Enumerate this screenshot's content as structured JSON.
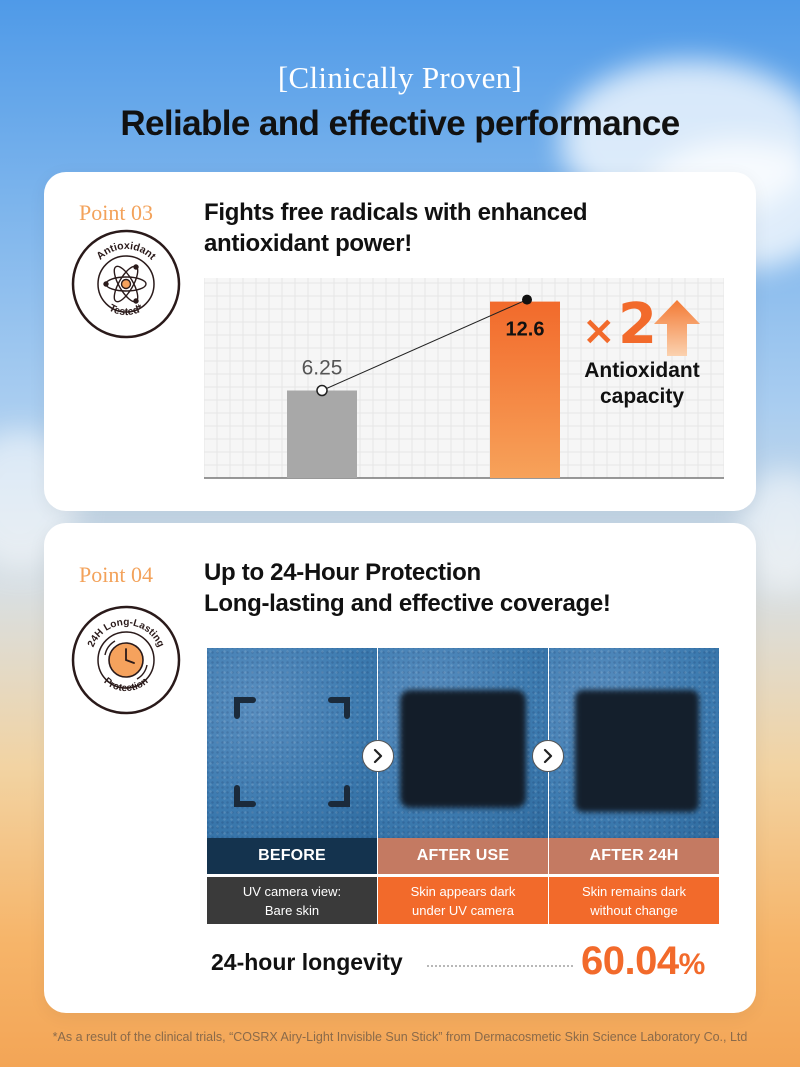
{
  "header": {
    "sup_title": "[Clinically Proven]",
    "main_title": "Reliable and effective performance"
  },
  "point3": {
    "label": "Point 03",
    "heading_line1": "Fights free radicals with enhanced",
    "heading_line2": "antioxidant power!",
    "badge_top": "Antioxidant",
    "badge_bottom": "Tested*",
    "badge_icon": "atom-icon",
    "multiplier_sign": "×",
    "multiplier_value": "2",
    "caption_line1": "Antioxidant",
    "caption_line2": "capacity",
    "colors": {
      "accent": "#f26a2b",
      "before_bar": "#a8a8a8"
    }
  },
  "chart_data": {
    "type": "bar",
    "values": [
      6.25,
      12.6
    ],
    "data_labels": [
      "6.25",
      "12.6"
    ],
    "ylim": [
      0,
      14
    ]
  },
  "point4": {
    "label": "Point 04",
    "heading_line1": "Up to 24-Hour Protection",
    "heading_line2": "Long-lasting and effective coverage!",
    "badge_top": "24H Long-Lasting",
    "badge_bottom": "Protection",
    "badge_icon": "clock-icon",
    "panels": [
      {
        "label": "BEFORE",
        "desc_line1": "UV camera view:",
        "desc_line2": "Bare skin"
      },
      {
        "label": "AFTER USE",
        "desc_line1": "Skin appears dark",
        "desc_line2": "under UV camera"
      },
      {
        "label": "AFTER 24H",
        "desc_line1": "Skin remains dark",
        "desc_line2": "without change"
      }
    ],
    "longevity_label": "24-hour longevity",
    "longevity_value": "60.04",
    "longevity_unit": "%"
  },
  "footnote": "*As a result of the clinical trials, “COSRX Airy-Light Invisible Sun Stick” from Dermacosmetic Skin Science Laboratory Co., Ltd"
}
